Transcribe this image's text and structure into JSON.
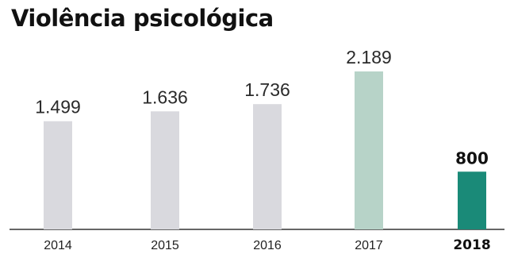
{
  "chart_data": {
    "type": "bar",
    "title": "Violência psicológica",
    "categories": [
      "2014",
      "2015",
      "2016",
      "2017",
      "2018"
    ],
    "value_labels": [
      "1.499",
      "1.636",
      "1.736",
      "2.189",
      "800"
    ],
    "values": [
      1499,
      1636,
      1736,
      2189,
      800
    ],
    "highlight_index": 4,
    "colors": [
      "#d9d9de",
      "#d9d9de",
      "#d9d9de",
      "#b7d3c8",
      "#1a8a78"
    ],
    "axis_color": "#333333",
    "xlabel": "",
    "ylabel": "",
    "ylim": [
      0,
      2200
    ],
    "grid": false,
    "legend": "none"
  }
}
